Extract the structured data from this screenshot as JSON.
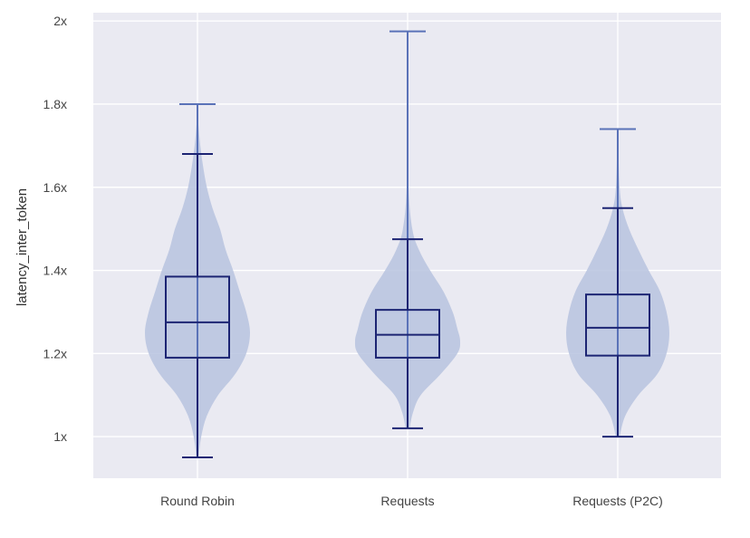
{
  "chart_data": {
    "type": "violin",
    "title": "",
    "xlabel": "",
    "ylabel": "latency_inter_token",
    "ylim": [
      0.9,
      2.02
    ],
    "yticks": [
      {
        "value": 1.0,
        "label": "1x"
      },
      {
        "value": 1.2,
        "label": "1.2x"
      },
      {
        "value": 1.4,
        "label": "1.4x"
      },
      {
        "value": 1.6,
        "label": "1.6x"
      },
      {
        "value": 1.8,
        "label": "1.8x"
      },
      {
        "value": 2.0,
        "label": "2x"
      }
    ],
    "categories": [
      "Round Robin",
      "Requests",
      "Requests (P2C)"
    ],
    "grid": true,
    "colors": {
      "plot_background": "#eaeaf2",
      "grid": "#ffffff",
      "violin_fill": "#b7c3df",
      "box": "#1c2473",
      "whisker": "#5a72b8"
    },
    "series": [
      {
        "category": "Round Robin",
        "min": 0.95,
        "lower_fence": 0.95,
        "q1": 1.19,
        "median": 1.275,
        "q3": 1.385,
        "upper_fence": 1.68,
        "max": 1.8,
        "density": [
          [
            0.95,
            1
          ],
          [
            1.0,
            4
          ],
          [
            1.05,
            10
          ],
          [
            1.1,
            22
          ],
          [
            1.15,
            40
          ],
          [
            1.2,
            52
          ],
          [
            1.25,
            56
          ],
          [
            1.3,
            52
          ],
          [
            1.35,
            45
          ],
          [
            1.4,
            38
          ],
          [
            1.45,
            30
          ],
          [
            1.5,
            24
          ],
          [
            1.55,
            16
          ],
          [
            1.6,
            10
          ],
          [
            1.65,
            6
          ],
          [
            1.7,
            3
          ],
          [
            1.75,
            1
          ],
          [
            1.8,
            0
          ]
        ]
      },
      {
        "category": "Requests",
        "min": 1.02,
        "lower_fence": 1.02,
        "q1": 1.19,
        "median": 1.245,
        "q3": 1.305,
        "upper_fence": 1.475,
        "max": 1.975,
        "density": [
          [
            1.02,
            2
          ],
          [
            1.06,
            6
          ],
          [
            1.1,
            14
          ],
          [
            1.15,
            35
          ],
          [
            1.2,
            53
          ],
          [
            1.23,
            56
          ],
          [
            1.26,
            53
          ],
          [
            1.3,
            48
          ],
          [
            1.35,
            38
          ],
          [
            1.4,
            24
          ],
          [
            1.45,
            12
          ],
          [
            1.5,
            5
          ],
          [
            1.6,
            1
          ],
          [
            1.8,
            0.3
          ],
          [
            1.975,
            0
          ]
        ]
      },
      {
        "category": "Requests (P2C)",
        "min": 1.0,
        "lower_fence": 1.0,
        "q1": 1.195,
        "median": 1.262,
        "q3": 1.342,
        "upper_fence": 1.55,
        "max": 1.74,
        "density": [
          [
            1.0,
            2
          ],
          [
            1.05,
            8
          ],
          [
            1.1,
            22
          ],
          [
            1.15,
            42
          ],
          [
            1.2,
            52
          ],
          [
            1.25,
            55
          ],
          [
            1.3,
            52
          ],
          [
            1.35,
            45
          ],
          [
            1.4,
            33
          ],
          [
            1.45,
            22
          ],
          [
            1.5,
            12
          ],
          [
            1.55,
            5
          ],
          [
            1.6,
            2
          ],
          [
            1.7,
            0.5
          ],
          [
            1.74,
            0
          ]
        ]
      }
    ]
  }
}
